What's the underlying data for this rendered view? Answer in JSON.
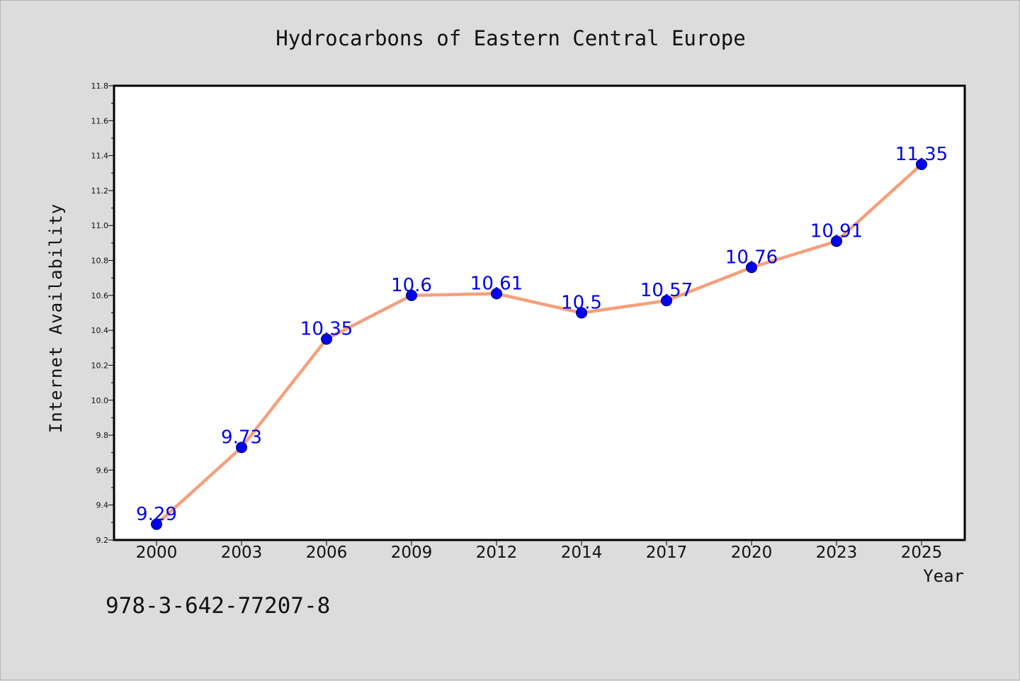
{
  "chart_data": {
    "type": "line",
    "title": "Hydrocarbons of Eastern Central Europe",
    "xlabel": "Year",
    "ylabel": "Internet Availability",
    "categories": [
      "2000",
      "2003",
      "2006",
      "2009",
      "2012",
      "2014",
      "2017",
      "2020",
      "2023",
      "2025"
    ],
    "series": [
      {
        "values": [
          9.29,
          9.73,
          10.35,
          10.6,
          10.61,
          10.5,
          10.57,
          10.76,
          10.91,
          11.35
        ],
        "labels": [
          "9.29",
          "9.73",
          "10.35",
          "10.6",
          "10.61",
          "10.5",
          "10.57",
          "10.76",
          "10.91",
          "11.35"
        ],
        "line_color": "#f4a07c",
        "marker_color": "#0000ee",
        "label_color": "#0000ee"
      }
    ],
    "ylim": [
      9.2,
      11.8
    ],
    "yticks": [
      "9.2",
      "9.4",
      "9.6",
      "9.8",
      "10.0",
      "10.2",
      "10.4",
      "10.6",
      "10.8",
      "11.0",
      "11.2",
      "11.4",
      "11.6",
      "11.8"
    ],
    "grid": false,
    "legend": "none"
  },
  "footer_text": "978-3-642-77207-8",
  "colors": {
    "background": "#dcdcdc",
    "plot_background": "#ffffff"
  }
}
